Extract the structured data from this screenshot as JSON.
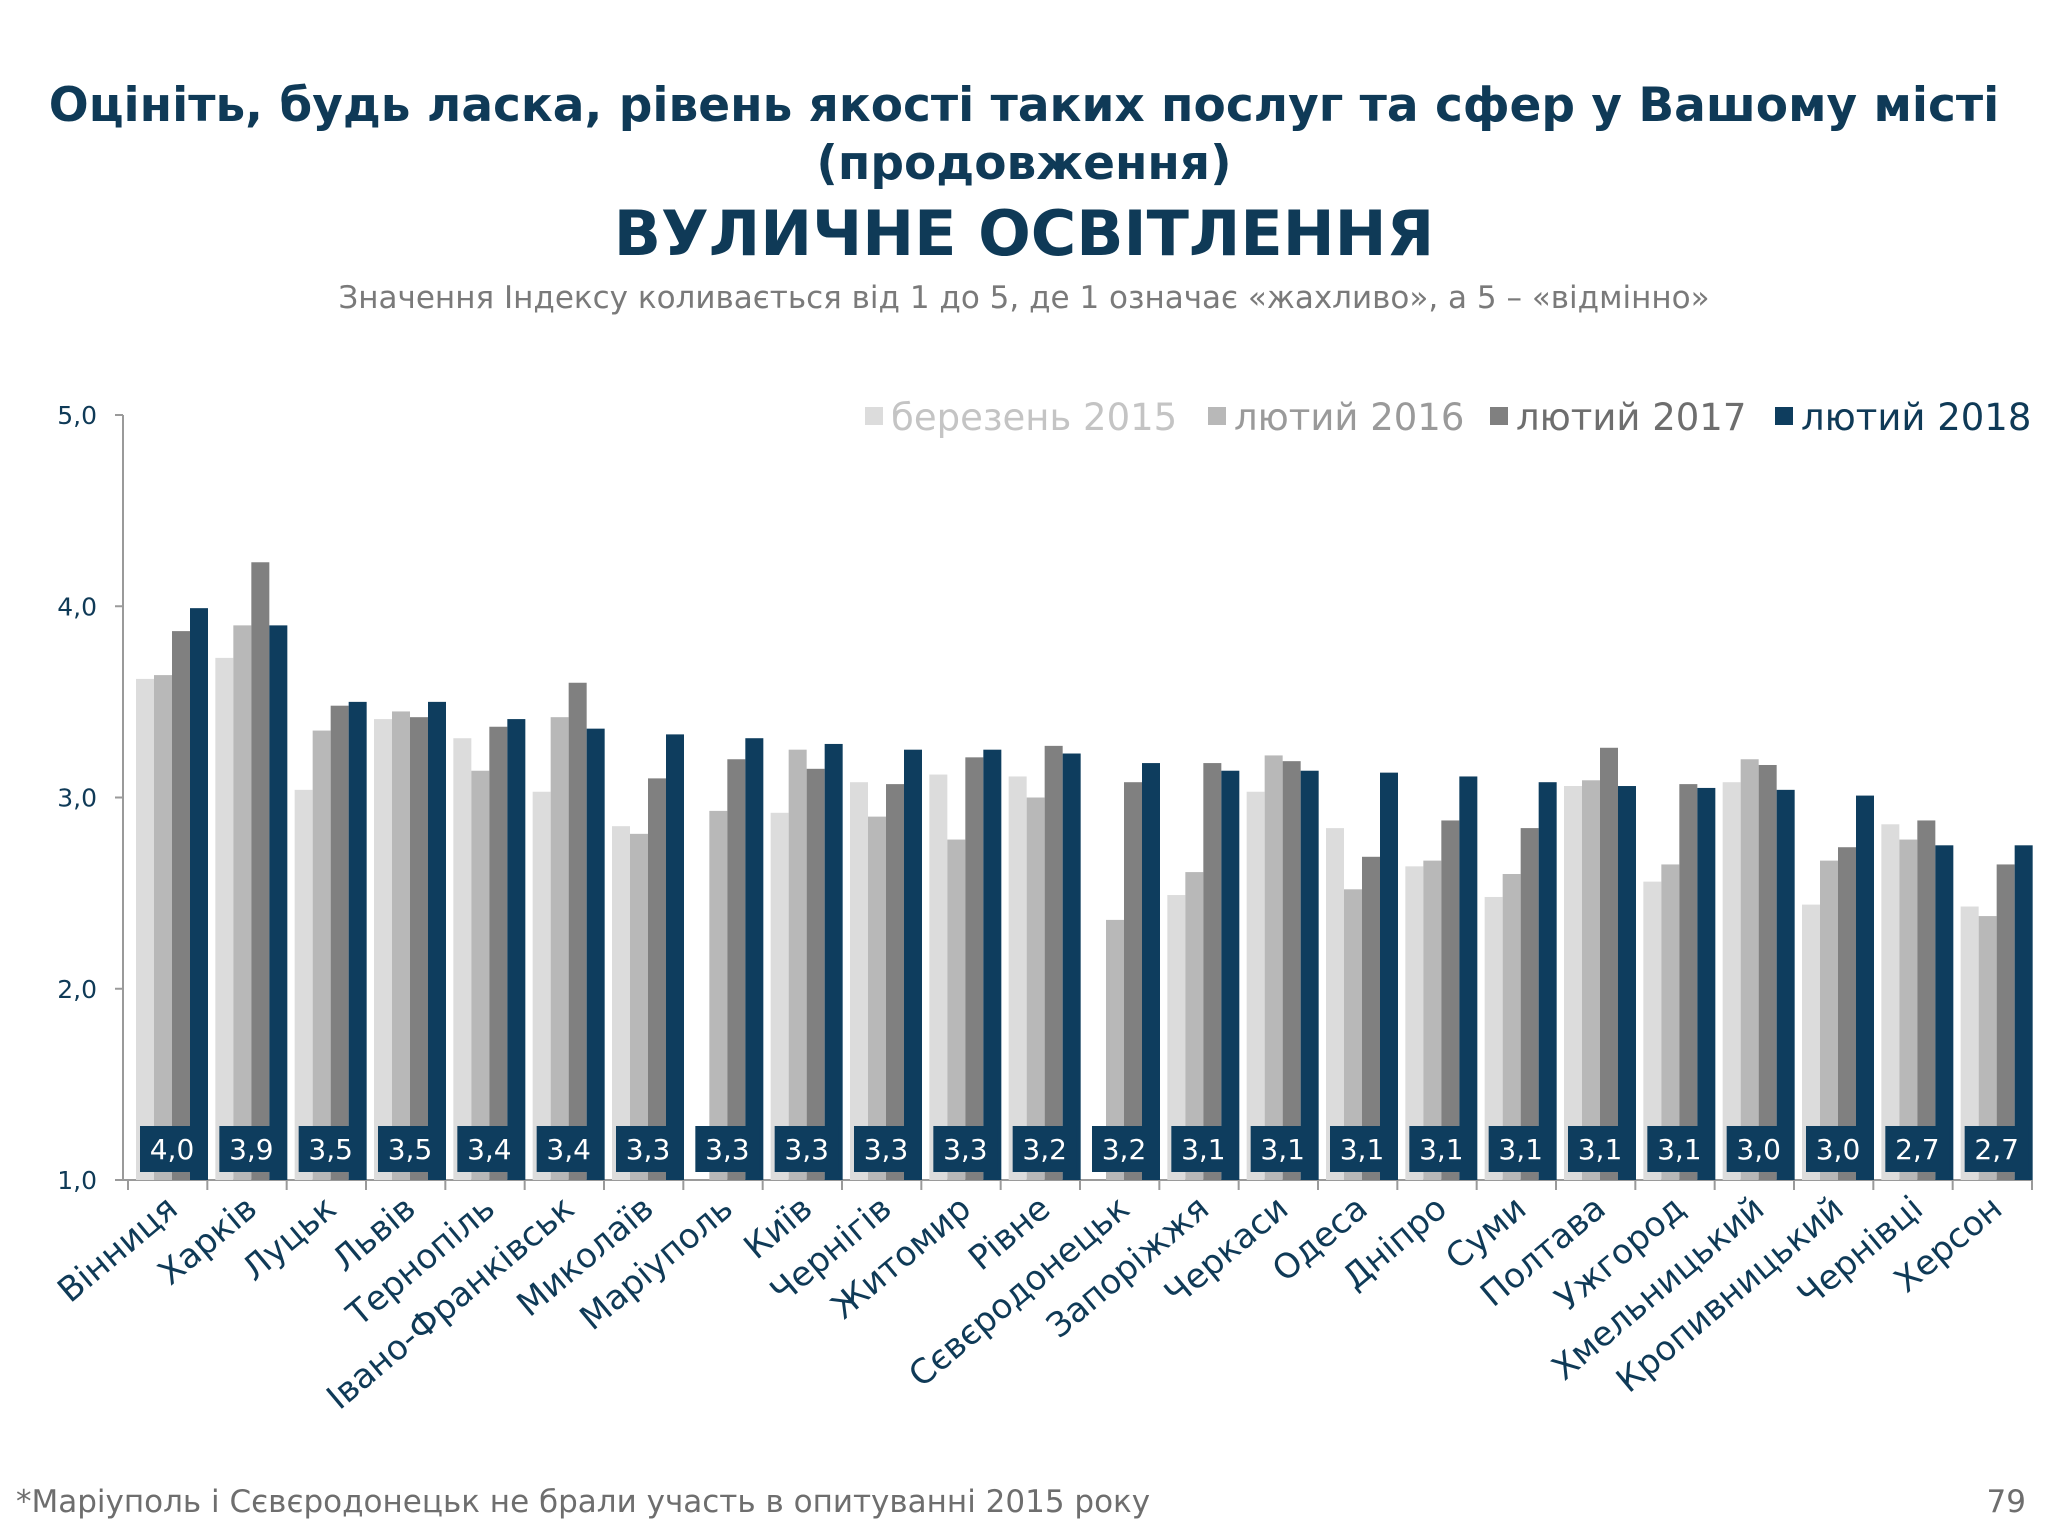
{
  "title_line1": "Оцініть, будь ласка, рівень якості таких послуг та сфер у Вашому місті",
  "title_line2": "(продовження)",
  "title_line3": "ВУЛИЧНЕ ОСВІТЛЕННЯ",
  "subtitle": "Значення Індексу коливається від 1 до 5, де 1 означає «жахливо», а 5 – «відмінно»",
  "footnote": "*Маріуполь і Сєвєродонецьк не брали участь в опитуванні 2015 року",
  "page_number": "79",
  "colors": {
    "title": "#0f3a57",
    "series": [
      "#dcdcdc",
      "#b8b8b8",
      "#808080",
      "#0e3d5e"
    ],
    "axis": "#9a9a9a",
    "label_box": "#0e3d5e"
  },
  "chart_data": {
    "type": "bar",
    "ylim": [
      1.0,
      5.0
    ],
    "yticks": [
      "1,0",
      "2,0",
      "3,0",
      "4,0",
      "5,0"
    ],
    "legend_position": "top-right",
    "categories": [
      "Вінниця",
      "Харків",
      "Луцьк",
      "Львів",
      "Тернопіль",
      "Івано-Франківськ",
      "Миколаїв",
      "Маріуполь",
      "Київ",
      "Чернігів",
      "Житомир",
      "Рівне",
      "Сєвєродонецьк",
      "Запоріжжя",
      "Черкаси",
      "Одеса",
      "Дніпро",
      "Суми",
      "Полтава",
      "Ужгород",
      "Хмельницький",
      "Кропивницький",
      "Чернівці",
      "Херсон"
    ],
    "series": [
      {
        "name": "березень 2015",
        "values": [
          3.62,
          3.73,
          3.04,
          3.41,
          3.31,
          3.03,
          2.85,
          null,
          2.92,
          3.08,
          3.12,
          3.11,
          null,
          2.49,
          3.03,
          2.84,
          2.64,
          2.48,
          3.06,
          2.56,
          3.08,
          2.44,
          2.86,
          2.43
        ]
      },
      {
        "name": "лютий 2016",
        "values": [
          3.64,
          3.9,
          3.35,
          3.45,
          3.14,
          3.42,
          2.81,
          2.93,
          3.25,
          2.9,
          2.78,
          3.0,
          2.36,
          2.61,
          3.22,
          2.52,
          2.67,
          2.6,
          3.09,
          2.65,
          3.2,
          2.67,
          2.78,
          2.38
        ]
      },
      {
        "name": "лютий 2017",
        "values": [
          3.87,
          4.23,
          3.48,
          3.42,
          3.37,
          3.6,
          3.1,
          3.2,
          3.15,
          3.07,
          3.21,
          3.27,
          3.08,
          3.18,
          3.19,
          2.69,
          2.88,
          2.84,
          3.26,
          3.07,
          3.17,
          2.74,
          2.88,
          2.65
        ]
      },
      {
        "name": "лютий 2018",
        "values": [
          3.99,
          3.9,
          3.5,
          3.5,
          3.41,
          3.36,
          3.33,
          3.31,
          3.28,
          3.25,
          3.25,
          3.23,
          3.18,
          3.14,
          3.14,
          3.13,
          3.11,
          3.08,
          3.06,
          3.05,
          3.04,
          3.01,
          2.75,
          2.75
        ]
      }
    ],
    "data_labels": [
      "4,0",
      "3,9",
      "3,5",
      "3,5",
      "3,4",
      "3,4",
      "3,3",
      "3,3",
      "3,3",
      "3,3",
      "3,3",
      "3,2",
      "3,2",
      "3,1",
      "3,1",
      "3,1",
      "3,1",
      "3,1",
      "3,1",
      "3,1",
      "3,0",
      "3,0",
      "2,7",
      "2,7"
    ]
  }
}
